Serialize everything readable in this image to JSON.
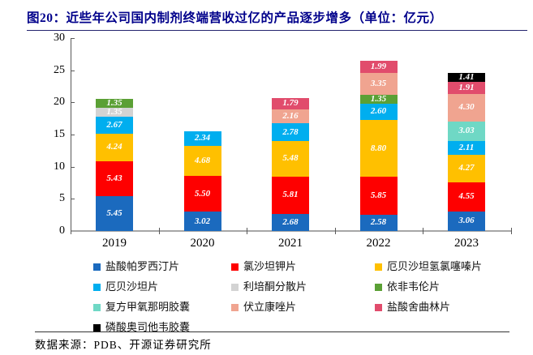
{
  "title": "图20：近些年公司国内制剂终端营收过亿的产品逐步增多（单位：亿元）",
  "source": "数据来源：PDB、开源证券研究所",
  "chart_data": {
    "type": "bar",
    "stacked": true,
    "grid": false,
    "legend_position": "bottom",
    "categories": [
      "2019",
      "2020",
      "2021",
      "2022",
      "2023"
    ],
    "ylim": [
      0,
      30
    ],
    "ytick_step": 5,
    "yticks": [
      0,
      5,
      10,
      15,
      20,
      25,
      30
    ],
    "value_label_color": "#ffffff",
    "series": [
      {
        "name": "盐酸帕罗西汀片",
        "color": "#1B6ABE",
        "values": [
          5.45,
          3.02,
          2.68,
          2.58,
          3.06
        ]
      },
      {
        "name": "氯沙坦钾片",
        "color": "#FE0000",
        "values": [
          5.43,
          5.5,
          5.81,
          5.85,
          4.55
        ]
      },
      {
        "name": "厄贝沙坦氢氯噻嗪片",
        "color": "#FFC000",
        "values": [
          4.24,
          4.68,
          5.48,
          8.8,
          4.27
        ]
      },
      {
        "name": "厄贝沙坦片",
        "color": "#00AEEF",
        "values": [
          2.67,
          2.34,
          2.78,
          2.6,
          2.11
        ]
      },
      {
        "name": "利培酮分散片",
        "color": "#D3D3D3",
        "values": [
          1.35,
          null,
          null,
          null,
          null
        ]
      },
      {
        "name": "依非韦伦片",
        "color": "#5BA035",
        "values": [
          1.35,
          null,
          null,
          1.35,
          null
        ]
      },
      {
        "name": "复方甲氧那明胶囊",
        "color": "#6FD8C5",
        "values": [
          null,
          null,
          null,
          null,
          3.03
        ]
      },
      {
        "name": "伏立康唑片",
        "color": "#F0A490",
        "values": [
          null,
          null,
          2.16,
          3.35,
          4.3
        ]
      },
      {
        "name": "盐酸舍曲林片",
        "color": "#E14C6C",
        "values": [
          null,
          null,
          1.79,
          1.99,
          1.91
        ]
      },
      {
        "name": "磷酸奥司他韦胶囊",
        "color": "#000000",
        "values": [
          null,
          null,
          null,
          null,
          1.41
        ]
      }
    ],
    "totals": [
      20.49,
      15.54,
      20.7,
      26.52,
      24.64
    ]
  }
}
